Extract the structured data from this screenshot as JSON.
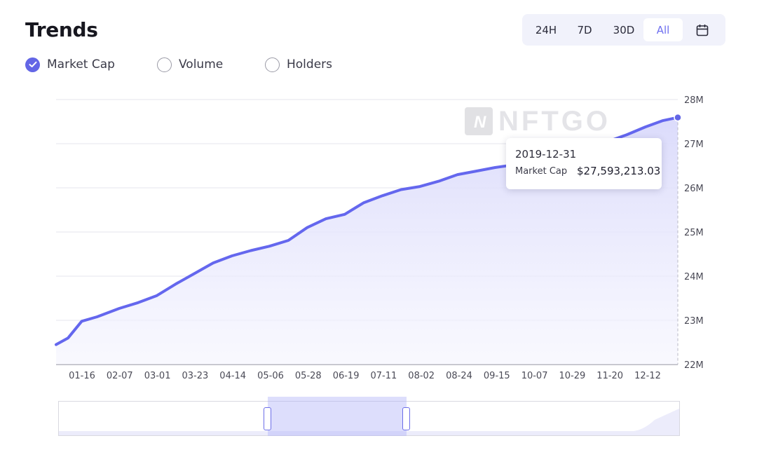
{
  "header": {
    "title": "Trends"
  },
  "range_buttons": [
    {
      "label": "24H",
      "active": false
    },
    {
      "label": "7D",
      "active": false
    },
    {
      "label": "30D",
      "active": false
    },
    {
      "label": "All",
      "active": true
    }
  ],
  "calendar_icon": "calendar-icon",
  "metrics": [
    {
      "label": "Market Cap",
      "checked": true
    },
    {
      "label": "Volume",
      "checked": false
    },
    {
      "label": "Holders",
      "checked": false
    }
  ],
  "watermark": "NFTGO",
  "tooltip": {
    "date": "2019-12-31",
    "label": "Market Cap",
    "value": "$27,593,213.03"
  },
  "colors": {
    "accent": "#6366e6",
    "line": "#6467ee",
    "area": "#dcdcfb"
  },
  "chart_data": {
    "type": "area",
    "x_tick_labels": [
      "01-16",
      "02-07",
      "03-01",
      "03-23",
      "04-14",
      "05-06",
      "05-28",
      "06-19",
      "07-11",
      "08-02",
      "08-24",
      "09-15",
      "10-07",
      "10-29",
      "11-20",
      "12-12"
    ],
    "y_tick_labels": [
      "22M",
      "23M",
      "24M",
      "25M",
      "26M",
      "27M",
      "28M"
    ],
    "ylim": [
      22000000,
      28000000
    ],
    "grid": true,
    "series": [
      {
        "name": "Market Cap",
        "x": [
          "2019-01-01",
          "2019-01-08",
          "2019-01-16",
          "2019-01-25",
          "2019-02-07",
          "2019-02-18",
          "2019-03-01",
          "2019-03-12",
          "2019-03-23",
          "2019-04-03",
          "2019-04-14",
          "2019-04-25",
          "2019-05-06",
          "2019-05-17",
          "2019-05-28",
          "2019-06-08",
          "2019-06-19",
          "2019-06-30",
          "2019-07-11",
          "2019-07-22",
          "2019-08-02",
          "2019-08-13",
          "2019-08-24",
          "2019-09-04",
          "2019-09-15",
          "2019-09-26",
          "2019-10-07",
          "2019-10-18",
          "2019-10-29",
          "2019-11-09",
          "2019-11-20",
          "2019-12-01",
          "2019-12-12",
          "2019-12-22",
          "2019-12-31"
        ],
        "values": [
          22450000,
          22600000,
          22980000,
          23080000,
          23270000,
          23400000,
          23560000,
          23820000,
          24060000,
          24300000,
          24460000,
          24580000,
          24680000,
          24810000,
          25100000,
          25300000,
          25400000,
          25660000,
          25820000,
          25960000,
          26030000,
          26150000,
          26300000,
          26380000,
          26460000,
          26520000,
          26600000,
          26680000,
          26780000,
          26950000,
          27050000,
          27200000,
          27380000,
          27520000,
          27593213
        ]
      }
    ]
  }
}
